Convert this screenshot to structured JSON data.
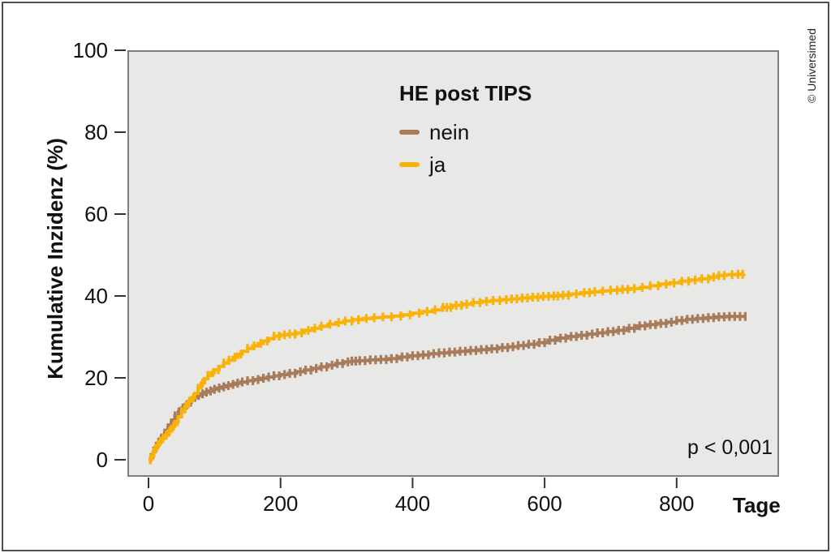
{
  "figure": {
    "credit": "© Universimed",
    "p_value": "p < 0,001"
  },
  "chart_data": {
    "type": "line",
    "subtype": "cumulative-incidence-step-curves-with-censor-marks",
    "title": "",
    "xlabel": "Tage",
    "ylabel": "Kumulative Inzidenz (%)",
    "xlim": [
      0,
      955
    ],
    "ylim": [
      0,
      100
    ],
    "xticks": [
      0,
      200,
      400,
      600,
      800
    ],
    "yticks": [
      0,
      20,
      40,
      60,
      80,
      100
    ],
    "grid": false,
    "panel_background": "#e8e8e6",
    "legend": {
      "title": "HE post TIPS",
      "position": "top-center-inside"
    },
    "annotations": [
      {
        "text": "p < 0,001",
        "position": "bottom-right-inside"
      }
    ],
    "series": [
      {
        "name": "nein",
        "color": "#a87b5b",
        "x": [
          0,
          4,
          8,
          12,
          16,
          20,
          25,
          30,
          35,
          40,
          45,
          50,
          55,
          60,
          65,
          70,
          75,
          80,
          85,
          90,
          97,
          104,
          111,
          118,
          125,
          132,
          140,
          150,
          160,
          170,
          180,
          190,
          200,
          212,
          224,
          236,
          248,
          260,
          272,
          284,
          296,
          308,
          320,
          335,
          350,
          365,
          380,
          395,
          410,
          425,
          440,
          455,
          470,
          485,
          500,
          515,
          530,
          545,
          560,
          575,
          590,
          605,
          620,
          635,
          650,
          665,
          680,
          695,
          710,
          725,
          740,
          755,
          770,
          785,
          800,
          815,
          830,
          845,
          860,
          875,
          890,
          906
        ],
        "y": [
          0,
          1.2,
          2.8,
          4,
          5,
          6,
          7.2,
          8.5,
          9.7,
          10.7,
          11.7,
          12.6,
          13.4,
          14.1,
          14.7,
          15.2,
          15.7,
          16.1,
          16.5,
          16.8,
          17.2,
          17.5,
          17.8,
          18.1,
          18.4,
          18.7,
          19,
          19.3,
          19.6,
          19.9,
          20.2,
          20.5,
          20.8,
          21.1,
          21.5,
          21.9,
          22.3,
          22.7,
          23.1,
          23.5,
          23.9,
          24.1,
          24.2,
          24.4,
          24.5,
          24.7,
          25.1,
          25.4,
          25.6,
          25.9,
          26.1,
          26.3,
          26.5,
          26.7,
          26.9,
          27.1,
          27.4,
          27.6,
          27.9,
          28.2,
          28.6,
          29.2,
          29.7,
          30.1,
          30.4,
          30.7,
          31,
          31.3,
          31.6,
          32.1,
          32.7,
          33,
          33.3,
          33.6,
          34,
          34.3,
          34.5,
          34.7,
          34.9,
          35,
          35,
          35
        ],
        "censor_x": [
          3,
          7,
          11,
          15,
          19,
          24,
          29,
          34,
          40,
          46,
          52,
          58,
          64,
          70,
          76,
          82,
          88,
          94,
          100,
          107,
          114,
          121,
          128,
          135,
          142,
          150,
          158,
          166,
          174,
          182,
          190,
          198,
          206,
          214,
          222,
          230,
          238,
          246,
          254,
          262,
          270,
          278,
          286,
          294,
          302,
          308,
          314,
          320,
          328,
          336,
          344,
          352,
          360,
          368,
          376,
          384,
          392,
          400,
          408,
          416,
          424,
          432,
          440,
          448,
          456,
          464,
          472,
          480,
          488,
          496,
          504,
          512,
          520,
          528,
          536,
          544,
          552,
          560,
          568,
          576,
          584,
          592,
          600,
          608,
          616,
          624,
          632,
          640,
          648,
          656,
          664,
          672,
          680,
          688,
          696,
          704,
          712,
          720,
          728,
          736,
          744,
          752,
          760,
          768,
          776,
          784,
          792,
          800,
          808,
          816,
          824,
          832,
          840,
          848,
          856,
          864,
          872,
          880,
          888,
          896,
          904
        ]
      },
      {
        "name": "ja",
        "color": "#f9b208",
        "x": [
          0,
          4,
          8,
          12,
          16,
          20,
          25,
          30,
          35,
          40,
          45,
          50,
          55,
          60,
          65,
          70,
          75,
          80,
          85,
          90,
          95,
          100,
          107,
          114,
          121,
          128,
          135,
          142,
          150,
          158,
          166,
          174,
          182,
          190,
          200,
          212,
          224,
          236,
          248,
          260,
          272,
          284,
          296,
          310,
          325,
          340,
          355,
          370,
          385,
          400,
          415,
          430,
          445,
          460,
          475,
          490,
          505,
          520,
          535,
          550,
          565,
          580,
          595,
          610,
          625,
          640,
          655,
          670,
          685,
          700,
          715,
          730,
          745,
          760,
          775,
          790,
          805,
          820,
          835,
          850,
          862,
          875,
          890,
          902
        ],
        "y": [
          0,
          1,
          2.5,
          3.5,
          4.5,
          5.2,
          6,
          7,
          8.2,
          9.3,
          10.5,
          11.7,
          13,
          14.3,
          15.2,
          16.2,
          17.5,
          18.8,
          19.8,
          20.6,
          21.3,
          22,
          22.8,
          23.6,
          24.3,
          25,
          25.8,
          26.5,
          27.2,
          27.8,
          28.4,
          29,
          29.6,
          30.2,
          30.5,
          30.7,
          31,
          31.6,
          32.1,
          32.6,
          33.1,
          33.5,
          33.9,
          34.2,
          34.5,
          34.7,
          34.9,
          35.1,
          35.4,
          35.8,
          36.2,
          36.6,
          37.2,
          37.7,
          38,
          38.4,
          38.7,
          38.9,
          39.1,
          39.3,
          39.5,
          39.7,
          39.9,
          40,
          40.2,
          40.5,
          40.8,
          41,
          41.2,
          41.4,
          41.6,
          41.8,
          42.1,
          42.5,
          42.9,
          43.2,
          43.6,
          43.9,
          44.2,
          44.6,
          45,
          45.2,
          45.3,
          45.4
        ],
        "censor_x": [
          3,
          6,
          10,
          14,
          18,
          22,
          27,
          32,
          38,
          44,
          50,
          56,
          62,
          68,
          75,
          82,
          90,
          98,
          106,
          114,
          122,
          131,
          140,
          150,
          160,
          170,
          180,
          190,
          198,
          206,
          214,
          222,
          232,
          242,
          252,
          262,
          275,
          288,
          298,
          308,
          318,
          330,
          342,
          355,
          368,
          382,
          396,
          410,
          422,
          434,
          446,
          452,
          458,
          466,
          474,
          482,
          492,
          502,
          512,
          522,
          532,
          542,
          550,
          558,
          566,
          574,
          582,
          590,
          598,
          606,
          614,
          620,
          628,
          636,
          648,
          660,
          668,
          676,
          688,
          700,
          710,
          718,
          726,
          736,
          748,
          760,
          772,
          784,
          796,
          808,
          818,
          828,
          838,
          848,
          856,
          864,
          872,
          884,
          893,
          900
        ]
      }
    ]
  }
}
